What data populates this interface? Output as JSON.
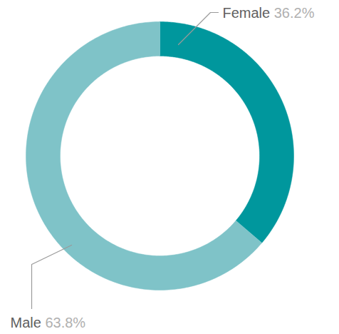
{
  "chart_data": {
    "type": "donut",
    "categories": [
      "Female",
      "Male"
    ],
    "values": [
      36.2,
      63.8
    ],
    "value_labels": [
      "36.2%",
      "63.8%"
    ],
    "colors": [
      "#00979d",
      "#7fc3c8"
    ],
    "data_labels": true
  }
}
